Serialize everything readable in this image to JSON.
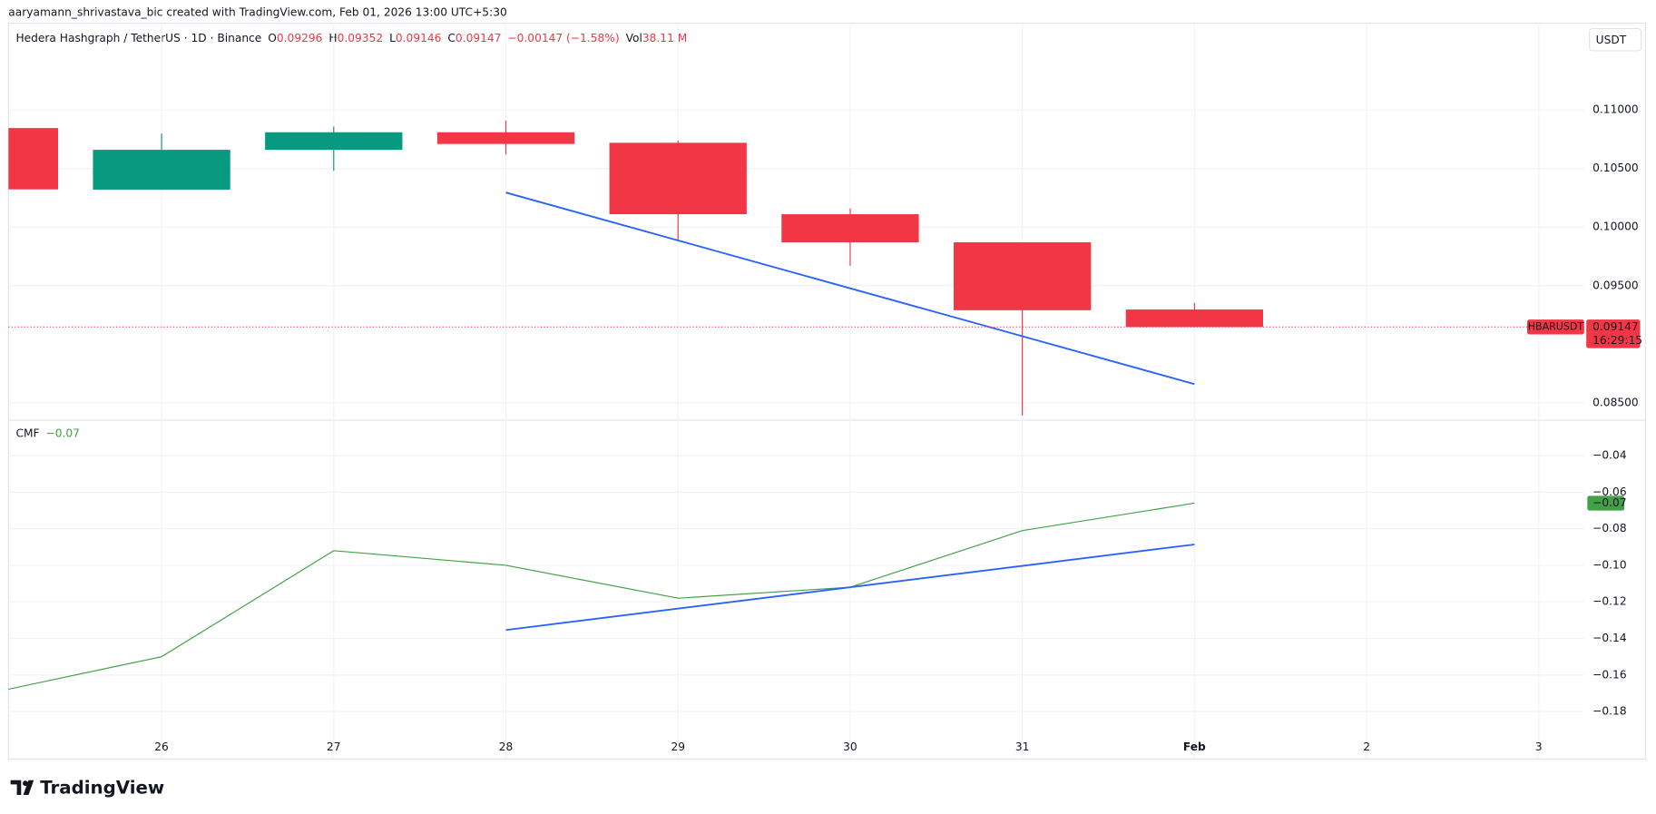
{
  "header": {
    "attribution": "aaryamann_shrivastava_bic created with TradingView.com, Feb 01, 2026 13:00 UTC+5:30",
    "symbol": "Hedera Hashgraph / TetherUS · 1D · Binance",
    "o": "O",
    "h": "H",
    "l": "L",
    "c": "C",
    "change": "−0.00147 (−1.58%)",
    "vol": "Vol",
    "vol_value": "38.11 M",
    "currency": "USDT",
    "ticker": "HBARUSDT",
    "countdown": "16:29:15",
    "brand": "TradingView"
  },
  "chart_data": [
    {
      "type": "candlestick",
      "categories": [
        null,
        "26",
        "27",
        "28",
        "29",
        "30",
        "31",
        "Feb",
        "2",
        "3"
      ],
      "open": [
        0.10846,
        0.1032,
        0.1066,
        0.1081,
        0.1072,
        0.1011,
        0.0987,
        0.09296,
        null,
        null
      ],
      "high": [
        0.10846,
        0.108,
        0.1086,
        0.1091,
        0.1074,
        0.1016,
        0.0987,
        0.09352,
        null,
        null
      ],
      "low": [
        0.10322,
        0.1032,
        0.1048,
        0.1062,
        0.0988,
        0.0967,
        0.0839,
        0.09146,
        null,
        null
      ],
      "close": [
        0.10322,
        0.1066,
        0.1081,
        0.1071,
        0.1011,
        0.0987,
        0.0929,
        0.09147,
        null,
        null
      ],
      "up_color": "#089981",
      "down_color": "#f23645",
      "ylim": [
        0.08355,
        0.11741
      ],
      "yticks": [
        {
          "value": 0.085,
          "label": "0.08500"
        },
        {
          "value": 0.095,
          "label": "0.09500"
        },
        {
          "value": 0.1,
          "label": "0.10000"
        },
        {
          "value": 0.105,
          "label": "0.10500"
        },
        {
          "value": 0.11,
          "label": "0.11000"
        }
      ],
      "trendline": {
        "start": "28",
        "end": "Feb",
        "start_value": 0.10295,
        "end_value": 0.08659,
        "color": "#2962ff"
      },
      "grid": true
    },
    {
      "type": "line",
      "title": "CMF",
      "current_label": "−0.07",
      "color": "#43a047",
      "values": [
        -0.17,
        -0.15,
        -0.092,
        -0.1,
        -0.118,
        -0.112,
        -0.081,
        -0.066,
        null,
        null
      ],
      "ylim": [
        -0.206,
        -0.0209
      ],
      "yticks": [
        {
          "value": -0.18,
          "label": "−0.18"
        },
        {
          "value": -0.16,
          "label": "−0.16"
        },
        {
          "value": -0.14,
          "label": "−0.14"
        },
        {
          "value": -0.12,
          "label": "−0.12"
        },
        {
          "value": -0.1,
          "label": "−0.10"
        },
        {
          "value": -0.08,
          "label": "−0.08"
        },
        {
          "value": -0.06,
          "label": "−0.06"
        },
        {
          "value": -0.04,
          "label": "−0.04"
        }
      ],
      "trendline": {
        "start": "28",
        "end": "Feb",
        "start_value": -0.1354,
        "end_value": -0.0886,
        "color": "#2962ff"
      },
      "grid": true
    }
  ]
}
